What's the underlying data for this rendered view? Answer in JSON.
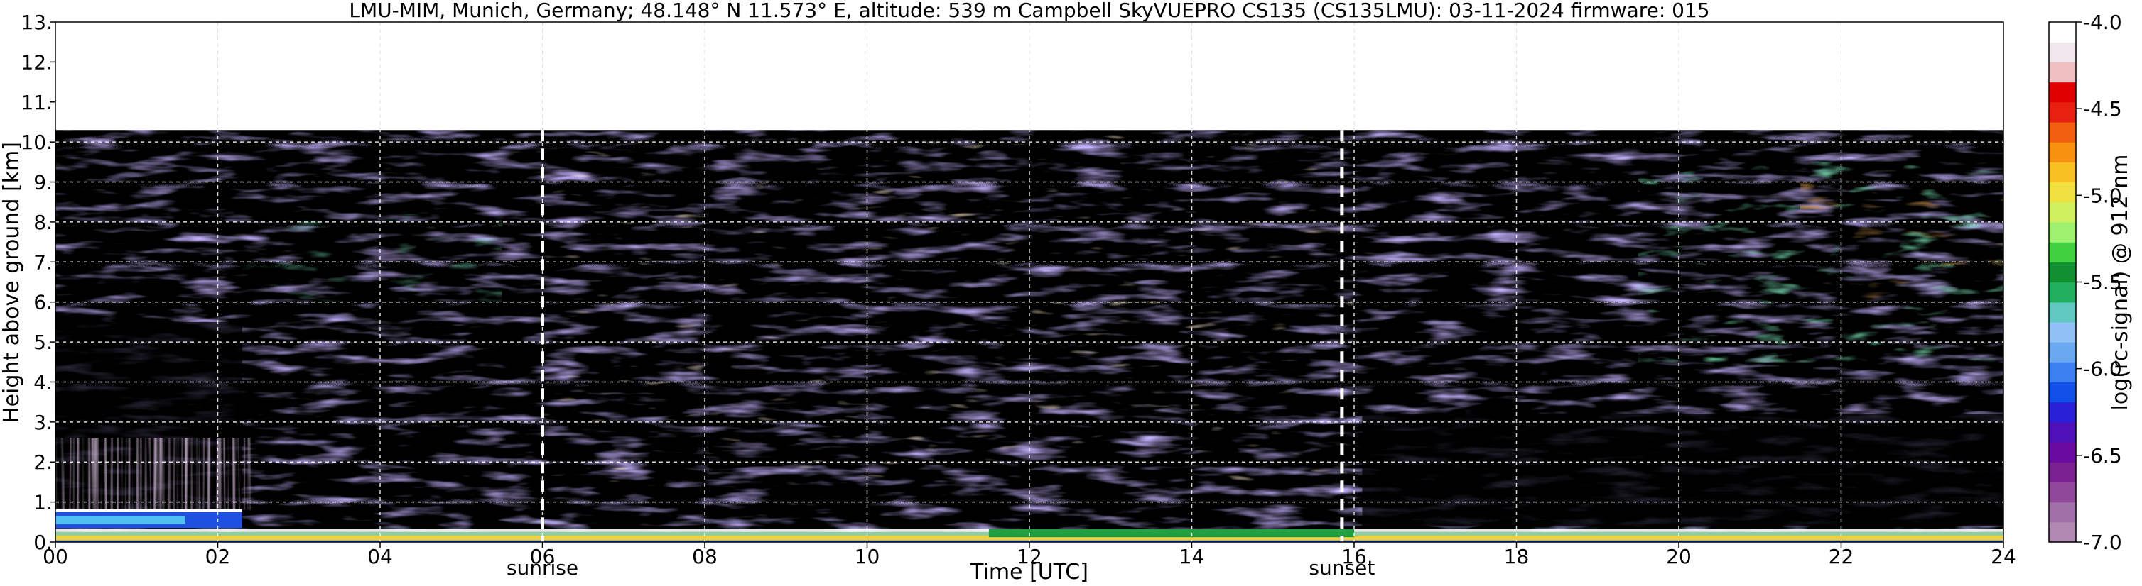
{
  "chart_data": {
    "type": "heatmap",
    "title": "LMU-MIM, Munich, Germany; 48.148° N 11.573° E, altitude: 539 m    Campbell SkyVUEPRO CS135 (CS135LMU): 03-11-2024    firmware: 015",
    "xlabel": "Time [UTC]",
    "ylabel": "Height above ground [km]",
    "xlim": [
      0,
      24
    ],
    "ylim": [
      0,
      13
    ],
    "x_ticks": [
      "00",
      "02",
      "04",
      "06",
      "08",
      "10",
      "12",
      "14",
      "16",
      "18",
      "20",
      "22",
      "24"
    ],
    "x_tick_values": [
      0,
      2,
      4,
      6,
      8,
      10,
      12,
      14,
      16,
      18,
      20,
      22,
      24
    ],
    "y_ticks": [
      "0.",
      "1.",
      "2.",
      "3.",
      "4.",
      "5.",
      "6.",
      "7.",
      "8.",
      "9.",
      "10.",
      "11.",
      "12.",
      "13."
    ],
    "y_tick_values": [
      0,
      1,
      2,
      3,
      4,
      5,
      6,
      7,
      8,
      9,
      10,
      11,
      12,
      13
    ],
    "grid": true,
    "data_top_km": 10.3,
    "annotations": [
      {
        "label": "sunrise",
        "time_utc": 6.0
      },
      {
        "label": "sunset",
        "time_utc": 15.85
      }
    ],
    "colorbar": {
      "label": "log(rc-signal) @ 912 nm",
      "range": [
        -7.0,
        -4.0
      ],
      "ticks": [
        "-4.0",
        "-4.5",
        "-5.0",
        "-5.5",
        "-6.0",
        "-6.5",
        "-7.0"
      ],
      "tick_values": [
        -4.0,
        -4.5,
        -5.0,
        -5.5,
        -6.0,
        -6.5,
        -7.0
      ],
      "colors_bottom_to_top": [
        "#b08ab0",
        "#a070a8",
        "#904898",
        "#7a2090",
        "#6a0aa0",
        "#5010b8",
        "#2a20d8",
        "#1050e8",
        "#3a80f0",
        "#6aa8f0",
        "#90c0f4",
        "#60c8c0",
        "#20b060",
        "#109030",
        "#40d040",
        "#a0f070",
        "#d0f060",
        "#f0e040",
        "#f8c020",
        "#f89010",
        "#f06010",
        "#e82010",
        "#e00000",
        "#f0c0c0",
        "#f0e8ec",
        "#ffffff"
      ]
    }
  }
}
